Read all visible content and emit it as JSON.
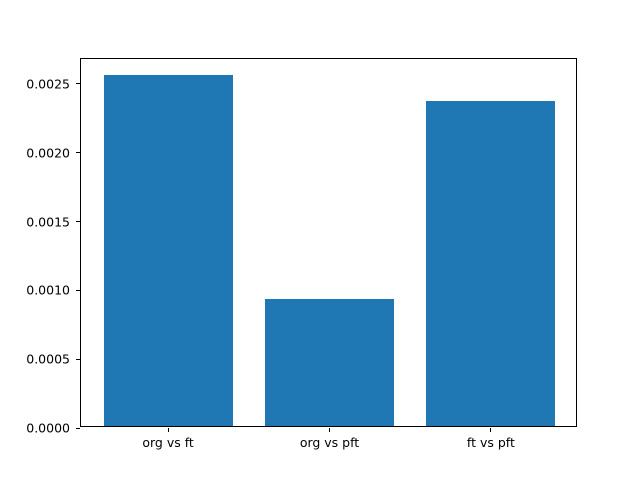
{
  "chart_data": {
    "type": "bar",
    "title": "",
    "xlabel": "",
    "ylabel": "",
    "categories": [
      "org vs ft",
      "org vs pft",
      "ft vs pft"
    ],
    "values": [
      0.00255,
      0.00092,
      0.00236
    ],
    "yticks": [
      0.0,
      0.0005,
      0.001,
      0.0015,
      0.002,
      0.0025
    ],
    "ytick_labels": [
      "0.0000",
      "0.0005",
      "0.0010",
      "0.0015",
      "0.0020",
      "0.0025"
    ],
    "ylim": [
      0,
      0.00268
    ],
    "xlim": [
      -0.54,
      2.54
    ],
    "bar_width": 0.8,
    "bar_color": "#1f77b4",
    "axis_color": "#000000",
    "background_color": "#ffffff",
    "grid": false,
    "legend": null
  }
}
